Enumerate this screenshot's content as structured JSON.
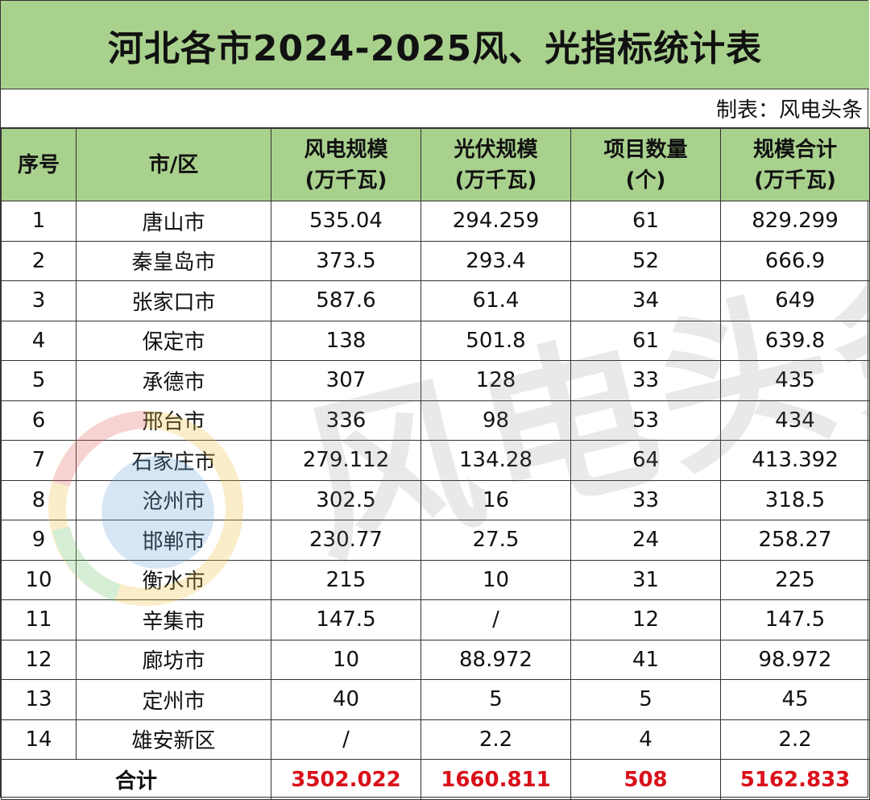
{
  "title": "河北各市2024-2025风、光指标统计表",
  "maker": "制表：风电头条",
  "headers": {
    "seq": "序号",
    "city": "市/区",
    "wind": [
      "风电规模",
      "(万千瓦)"
    ],
    "solar": [
      "光伏规模",
      "(万千瓦)"
    ],
    "count": [
      "项目数量",
      "(个)"
    ],
    "total": [
      "规模合计",
      "(万千瓦)"
    ]
  },
  "rows": [
    {
      "seq": "1",
      "city": "唐山市",
      "wind": "535.04",
      "solar": "294.259",
      "count": "61",
      "total": "829.299"
    },
    {
      "seq": "2",
      "city": "秦皇岛市",
      "wind": "373.5",
      "solar": "293.4",
      "count": "52",
      "total": "666.9"
    },
    {
      "seq": "3",
      "city": "张家口市",
      "wind": "587.6",
      "solar": "61.4",
      "count": "34",
      "total": "649"
    },
    {
      "seq": "4",
      "city": "保定市",
      "wind": "138",
      "solar": "501.8",
      "count": "61",
      "total": "639.8"
    },
    {
      "seq": "5",
      "city": "承德市",
      "wind": "307",
      "solar": "128",
      "count": "33",
      "total": "435"
    },
    {
      "seq": "6",
      "city": "邢台市",
      "wind": "336",
      "solar": "98",
      "count": "53",
      "total": "434"
    },
    {
      "seq": "7",
      "city": "石家庄市",
      "wind": "279.112",
      "solar": "134.28",
      "count": "64",
      "total": "413.392"
    },
    {
      "seq": "8",
      "city": "沧州市",
      "wind": "302.5",
      "solar": "16",
      "count": "33",
      "total": "318.5"
    },
    {
      "seq": "9",
      "city": "邯郸市",
      "wind": "230.77",
      "solar": "27.5",
      "count": "24",
      "total": "258.27"
    },
    {
      "seq": "10",
      "city": "衡水市",
      "wind": "215",
      "solar": "10",
      "count": "31",
      "total": "225"
    },
    {
      "seq": "11",
      "city": "辛集市",
      "wind": "147.5",
      "solar": "/",
      "count": "12",
      "total": "147.5"
    },
    {
      "seq": "12",
      "city": "廊坊市",
      "wind": "10",
      "solar": "88.972",
      "count": "41",
      "total": "98.972"
    },
    {
      "seq": "13",
      "city": "定州市",
      "wind": "40",
      "solar": "5",
      "count": "5",
      "total": "45"
    },
    {
      "seq": "14",
      "city": "雄安新区",
      "wind": "/",
      "solar": "2.2",
      "count": "4",
      "total": "2.2"
    }
  ],
  "totals": {
    "label": "合计",
    "wind": "3502.022",
    "solar": "1660.811",
    "count": "508",
    "total": "5162.833"
  },
  "watermark": "风电头条",
  "colors": {
    "header_bg": "#a9d18e",
    "total_text": "#d9101a",
    "border": "#333333"
  }
}
